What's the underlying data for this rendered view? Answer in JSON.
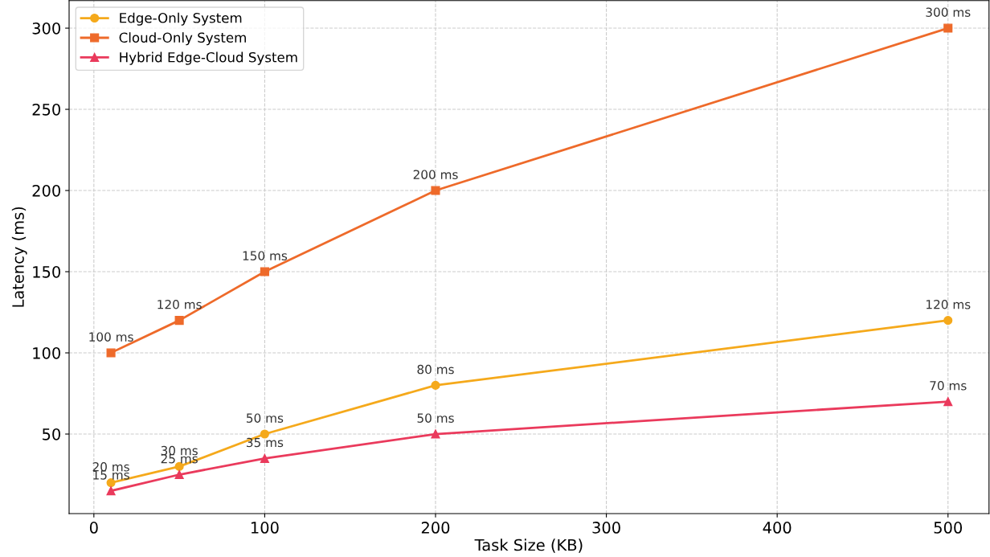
{
  "chart_data": {
    "type": "line",
    "xlabel": "Task Size (KB)",
    "ylabel": "Latency (ms)",
    "x": [
      10,
      50,
      100,
      200,
      500
    ],
    "series": [
      {
        "name": "Edge-Only System",
        "color": "#f5a91b",
        "marker": "circle",
        "values": [
          20,
          30,
          50,
          80,
          120
        ],
        "value_labels": [
          "20 ms",
          "30 ms",
          "50 ms",
          "80 ms",
          "120 ms"
        ]
      },
      {
        "name": "Cloud-Only System",
        "color": "#ee6a2a",
        "marker": "square",
        "values": [
          100,
          120,
          150,
          200,
          300
        ],
        "value_labels": [
          "100 ms",
          "120 ms",
          "150 ms",
          "200 ms",
          "300 ms"
        ]
      },
      {
        "name": "Hybrid Edge-Cloud System",
        "color": "#ea3a5c",
        "marker": "triangle",
        "values": [
          15,
          25,
          35,
          50,
          70
        ],
        "value_labels": [
          "15 ms",
          "25 ms",
          "35 ms",
          "50 ms",
          "70 ms"
        ]
      }
    ],
    "xlim": [
      -14.5,
      524
    ],
    "ylim": [
      1,
      317
    ],
    "xticks": [
      0,
      100,
      200,
      300,
      400,
      500
    ],
    "yticks": [
      50,
      100,
      150,
      200,
      250,
      300
    ],
    "grid": true,
    "legend": "top left",
    "line_style": "solid"
  }
}
